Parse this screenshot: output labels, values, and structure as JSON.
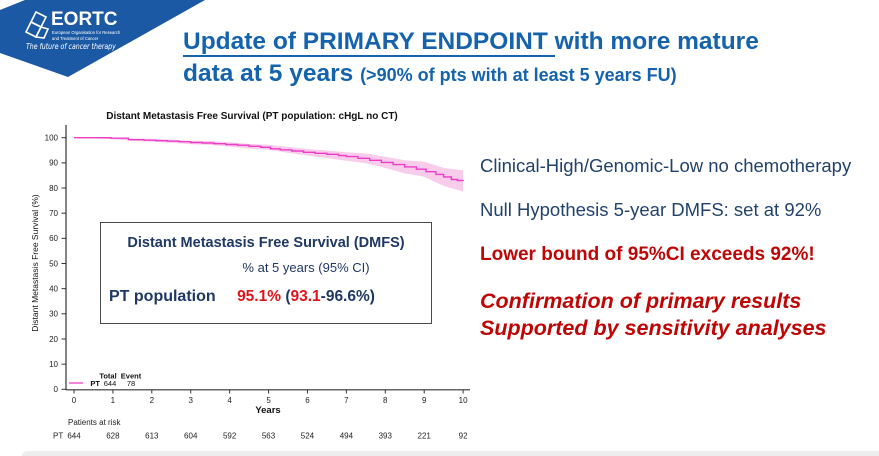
{
  "logo": {
    "name": "EORTC",
    "org_line1": "European Organisation for Research",
    "org_line2": "and Treatment of Cancer",
    "tagline": "The future of cancer therapy",
    "banner_color": "#1c59a5"
  },
  "title": {
    "underlined": "Update of PRIMARY ENDPOINT ",
    "line1_rest": "with more mature",
    "line2_main": "data at 5 years ",
    "line2_small": "(>90% of pts with at least 5 years FU)",
    "color": "#1563ac"
  },
  "right_panel": {
    "line1": "Clinical-High/Genomic-Low no chemotherapy",
    "line2": "Null Hypothesis 5-year DMFS: set at 92%",
    "line3": "Lower bound of 95%CI exceeds 92%!",
    "line4": "Confirmation of primary results",
    "line5": "Supported by sensitivity analyses",
    "navy": "#22426b",
    "red": "#bf0606"
  },
  "inset_box": {
    "title": "Distant Metastasis Free Survival (DMFS)",
    "subtitle": "% at 5 years (95% CI)",
    "row_label": "PT population",
    "value_main": "95.1%",
    "value_open": " (",
    "value_low": "93.1",
    "value_rest": "-96.6%)",
    "navy": "#1f3864",
    "red": "#e0131a"
  },
  "chart_data": {
    "type": "line",
    "subtype": "kaplan-meier",
    "title": "Distant Metastasis Free Survival (PT population: cHgL no CT)",
    "xlabel": "Years",
    "ylabel": "Distant Metastasis Free Survival (%)",
    "xlim": [
      0,
      10
    ],
    "ylim": [
      0,
      100
    ],
    "xticks": [
      0,
      1,
      2,
      3,
      4,
      5,
      6,
      7,
      8,
      9,
      10
    ],
    "yticks": [
      0,
      10,
      20,
      30,
      40,
      50,
      60,
      70,
      80,
      90,
      100
    ],
    "series": [
      {
        "name": "PT",
        "total": 644,
        "events": 78,
        "color": "#ee3cc8",
        "ci_color": "#f8cdec"
      }
    ],
    "km_points": [
      [
        0,
        100
      ],
      [
        0.95,
        99.8
      ],
      [
        1.4,
        99.2
      ],
      [
        1.8,
        99.0
      ],
      [
        2.1,
        98.8
      ],
      [
        2.4,
        98.6
      ],
      [
        2.7,
        98.4
      ],
      [
        3.0,
        98.1
      ],
      [
        3.3,
        97.9
      ],
      [
        3.6,
        97.6
      ],
      [
        3.9,
        97.3
      ],
      [
        4.2,
        97.0
      ],
      [
        4.5,
        96.6
      ],
      [
        4.8,
        96.2
      ],
      [
        5.05,
        95.6
      ],
      [
        5.3,
        95.2
      ],
      [
        5.6,
        94.7
      ],
      [
        5.9,
        94.2
      ],
      [
        6.2,
        93.8
      ],
      [
        6.5,
        93.4
      ],
      [
        6.8,
        92.9
      ],
      [
        7.0,
        92.5
      ],
      [
        7.3,
        91.8
      ],
      [
        7.6,
        91.0
      ],
      [
        7.9,
        90.2
      ],
      [
        8.2,
        89.3
      ],
      [
        8.5,
        88.4
      ],
      [
        8.8,
        87.5
      ],
      [
        9.05,
        86.5
      ],
      [
        9.3,
        85.4
      ],
      [
        9.5,
        84.4
      ],
      [
        9.7,
        83.4
      ],
      [
        9.85,
        83.0
      ],
      [
        10,
        82.8
      ]
    ],
    "ci_halfwidth_by_year": [
      0.15,
      0.4,
      0.55,
      0.7,
      0.85,
      1.0,
      1.3,
      1.7,
      2.2,
      3.0,
      4.2
    ],
    "legend": {
      "col1": "Total",
      "col2": "Event",
      "row_name": "PT",
      "row_total": "644",
      "row_event": "78"
    },
    "at_risk_label": "Patients at risk",
    "at_risk_group": "PT",
    "at_risk_values": [
      "644",
      "628",
      "613",
      "604",
      "592",
      "563",
      "524",
      "494",
      "393",
      "221",
      "92"
    ]
  }
}
